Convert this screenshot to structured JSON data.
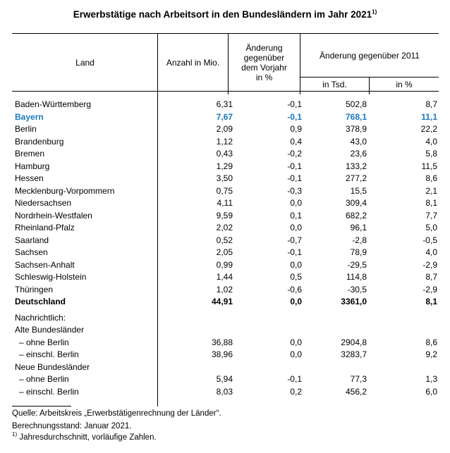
{
  "colors": {
    "bayern_blue": "#1878be",
    "text": "#000000"
  },
  "title": {
    "text": "Erwerbstätige nach Arbeitsort in den Bundesländern im Jahr 2021",
    "footnote_marker": "1)"
  },
  "table": {
    "headers": {
      "land": "Land",
      "anzahl": "Anzahl in Mio.",
      "vorjahr": "Änderung\ngegenüber\ndem Vorjahr\nin %",
      "seit2011": "Änderung gegenüber 2011",
      "tsd": "in Tsd.",
      "pct": "in %"
    },
    "rows": [
      {
        "type": "data",
        "label": "Baden-Württemberg",
        "values": [
          "6,31",
          "-0,1",
          "502,8",
          "8,7"
        ]
      },
      {
        "type": "data",
        "label": "Bayern",
        "values": [
          "7,67",
          "-0,1",
          "768,1",
          "11,1"
        ],
        "emphasis": "highlight"
      },
      {
        "type": "data",
        "label": "Berlin",
        "values": [
          "2,09",
          "0,9",
          "378,9",
          "22,2"
        ]
      },
      {
        "type": "data",
        "label": "Brandenburg",
        "values": [
          "1,12",
          "0,4",
          "43,0",
          "4,0"
        ]
      },
      {
        "type": "data",
        "label": "Bremen",
        "values": [
          "0,43",
          "-0,2",
          "23,6",
          "5,8"
        ]
      },
      {
        "type": "data",
        "label": "Hamburg",
        "values": [
          "1,29",
          "-0,1",
          "133,2",
          "11,5"
        ]
      },
      {
        "type": "data",
        "label": "Hessen",
        "values": [
          "3,50",
          "-0,1",
          "277,2",
          "8,6"
        ]
      },
      {
        "type": "data",
        "label": "Mecklenburg-Vorpommern",
        "values": [
          "0,75",
          "-0,3",
          "15,5",
          "2,1"
        ]
      },
      {
        "type": "data",
        "label": "Niedersachsen",
        "values": [
          "4,11",
          "0,0",
          "309,4",
          "8,1"
        ]
      },
      {
        "type": "data",
        "label": "Nordrhein-Westfalen",
        "values": [
          "9,59",
          "0,1",
          "682,2",
          "7,7"
        ]
      },
      {
        "type": "data",
        "label": "Rheinland-Pfalz",
        "values": [
          "2,02",
          "0,0",
          "96,1",
          "5,0"
        ]
      },
      {
        "type": "data",
        "label": "Saarland",
        "values": [
          "0,52",
          "-0,7",
          "-2,8",
          "-0,5"
        ]
      },
      {
        "type": "data",
        "label": "Sachsen",
        "values": [
          "2,05",
          "-0,1",
          "78,9",
          "4,0"
        ]
      },
      {
        "type": "data",
        "label": "Sachsen-Anhalt",
        "values": [
          "0,99",
          "0,0",
          "-29,5",
          "-2,9"
        ]
      },
      {
        "type": "data",
        "label": "Schleswig-Holstein",
        "values": [
          "1,44",
          "0,5",
          "114,8",
          "8,7"
        ]
      },
      {
        "type": "data",
        "label": "Thüringen",
        "values": [
          "1,02",
          "-0,6",
          "-30,5",
          "-2,9"
        ]
      },
      {
        "type": "data",
        "label": "Deutschland",
        "values": [
          "44,91",
          "0,0",
          "3361,0",
          "8,1"
        ],
        "emphasis": "bold"
      },
      {
        "type": "spacer"
      },
      {
        "type": "label",
        "label": "Nachrichtlich:"
      },
      {
        "type": "label",
        "label": "Alte Bundesländer"
      },
      {
        "type": "data",
        "label": "– ohne Berlin",
        "values": [
          "36,88",
          "0,0",
          "2904,8",
          "8,6"
        ],
        "indent": true
      },
      {
        "type": "data",
        "label": "– einschl. Berlin",
        "values": [
          "38,96",
          "0,0",
          "3283,7",
          "9,2"
        ],
        "indent": true
      },
      {
        "type": "label",
        "label": "Neue Bundesländer"
      },
      {
        "type": "data",
        "label": "– ohne Berlin",
        "values": [
          "5,94",
          "-0,1",
          "77,3",
          "1,3"
        ],
        "indent": true
      },
      {
        "type": "data",
        "label": "– einschl. Berlin",
        "values": [
          "8,03",
          "0,2",
          "456,2",
          "6,0"
        ],
        "indent": true
      }
    ]
  },
  "footer": {
    "source": "Quelle: Arbeitskreis „Erwerbstätigenrechnung der Länder“.",
    "status": "Berechnungsstand: Januar 2021.",
    "footnote_marker": "1)",
    "footnote_text": "Jahresdurchschnitt, vorläufige Zahlen."
  }
}
